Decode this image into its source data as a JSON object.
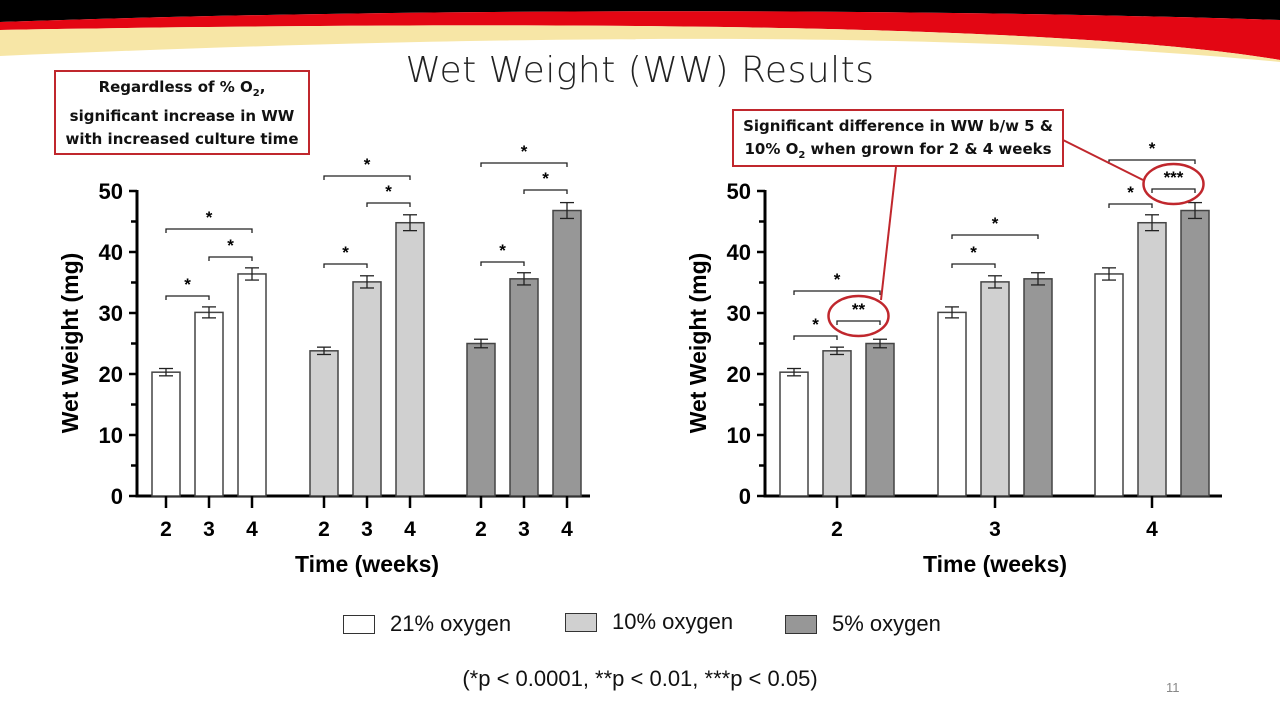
{
  "slide": {
    "title": "Wet Weight (WW) Results",
    "page_number": "11",
    "callout_left": {
      "line1": "Regardless of % O",
      "sub1": "2",
      "line1_end": ",",
      "line2": "significant increase in WW",
      "line3": "with increased culture time"
    },
    "callout_right": {
      "line1": "Significant difference in WW b/w 5 &",
      "line2_a": "10% O",
      "sub": "2",
      "line2_b": " when grown for 2 & 4 weeks"
    },
    "footnote": "(*p < 0.0001, **p < 0.01, ***p < 0.05)",
    "colors": {
      "accent_red": "#c0272d",
      "band_red": "#e30613",
      "band_yellow": "#f7e6a6"
    }
  },
  "legend": [
    {
      "label": "21% oxygen",
      "color": "#ffffff"
    },
    {
      "label": "10% oxygen",
      "color": "#d0d0d0"
    },
    {
      "label": "5% oxygen",
      "color": "#979797"
    }
  ],
  "chart_data": [
    {
      "type": "bar",
      "grouping": "by oxygen (groups), weeks on x",
      "xlabel": "Time (weeks)",
      "ylabel": "Wet Weight (mg)",
      "ylim": [
        0,
        50
      ],
      "yticks": [
        0,
        10,
        20,
        30,
        40,
        50
      ],
      "groups": [
        {
          "oxygen": "21% oxygen",
          "color": "#ffffff",
          "categories": [
            "2",
            "3",
            "4"
          ],
          "values": [
            20.3,
            30.1,
            36.4
          ],
          "errors": [
            0.6,
            0.9,
            1.0
          ]
        },
        {
          "oxygen": "10% oxygen",
          "color": "#d0d0d0",
          "categories": [
            "2",
            "3",
            "4"
          ],
          "values": [
            23.8,
            35.1,
            44.8
          ],
          "errors": [
            0.6,
            1.0,
            1.3
          ]
        },
        {
          "oxygen": "5% oxygen",
          "color": "#979797",
          "categories": [
            "2",
            "3",
            "4"
          ],
          "values": [
            25.0,
            35.6,
            46.8
          ],
          "errors": [
            0.7,
            1.0,
            1.3
          ]
        }
      ],
      "significance": [
        {
          "group": 0,
          "from": 0,
          "to": 1,
          "label": "*"
        },
        {
          "group": 0,
          "from": 1,
          "to": 2,
          "label": "*"
        },
        {
          "group": 0,
          "from": 0,
          "to": 2,
          "label": "*"
        },
        {
          "group": 1,
          "from": 0,
          "to": 1,
          "label": "*"
        },
        {
          "group": 1,
          "from": 1,
          "to": 2,
          "label": "*"
        },
        {
          "group": 1,
          "from": 0,
          "to": 2,
          "label": "*"
        },
        {
          "group": 2,
          "from": 0,
          "to": 1,
          "label": "*"
        },
        {
          "group": 2,
          "from": 1,
          "to": 2,
          "label": "*"
        },
        {
          "group": 2,
          "from": 0,
          "to": 2,
          "label": "*"
        }
      ]
    },
    {
      "type": "bar",
      "grouping": "by weeks on x, oxygen series",
      "xlabel": "Time (weeks)",
      "ylabel": "Wet Weight (mg)",
      "ylim": [
        0,
        50
      ],
      "yticks": [
        0,
        10,
        20,
        30,
        40,
        50
      ],
      "groups": [
        {
          "category": "2",
          "series": [
            "21% oxygen",
            "10% oxygen",
            "5% oxygen"
          ],
          "colors": [
            "#ffffff",
            "#d0d0d0",
            "#979797"
          ],
          "values": [
            20.3,
            23.8,
            25.0
          ],
          "errors": [
            0.6,
            0.6,
            0.7
          ]
        },
        {
          "category": "3",
          "series": [
            "21% oxygen",
            "10% oxygen",
            "5% oxygen"
          ],
          "colors": [
            "#ffffff",
            "#d0d0d0",
            "#979797"
          ],
          "values": [
            30.1,
            35.1,
            35.6
          ],
          "errors": [
            0.9,
            1.0,
            1.0
          ]
        },
        {
          "category": "4",
          "series": [
            "21% oxygen",
            "10% oxygen",
            "5% oxygen"
          ],
          "colors": [
            "#ffffff",
            "#d0d0d0",
            "#979797"
          ],
          "values": [
            36.4,
            44.8,
            46.8
          ],
          "errors": [
            1.0,
            1.3,
            1.3
          ]
        }
      ],
      "significance": [
        {
          "group": 0,
          "from": 0,
          "to": 1,
          "label": "*"
        },
        {
          "group": 0,
          "from": 1,
          "to": 2,
          "label": "**",
          "highlighted": true
        },
        {
          "group": 0,
          "from": 0,
          "to": 2,
          "label": "*"
        },
        {
          "group": 1,
          "from": 0,
          "to": 1,
          "label": "*"
        },
        {
          "group": 1,
          "from": 0,
          "to": 2,
          "label": "*"
        },
        {
          "group": 2,
          "from": 0,
          "to": 1,
          "label": "*"
        },
        {
          "group": 2,
          "from": 1,
          "to": 2,
          "label": "***",
          "highlighted": true
        },
        {
          "group": 2,
          "from": 0,
          "to": 2,
          "label": "*"
        }
      ]
    }
  ]
}
